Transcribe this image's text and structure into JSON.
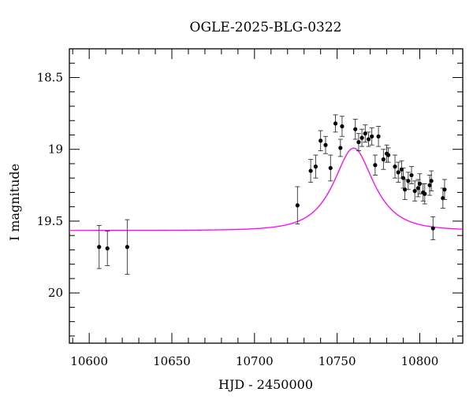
{
  "chart_data": {
    "type": "scatter",
    "title": "OGLE-2025-BLG-0322",
    "xlabel": "HJD - 2450000",
    "ylabel": "I magnitude",
    "xlim": [
      10588,
      10826
    ],
    "ylim": [
      20.35,
      18.3
    ],
    "y_inverted": true,
    "x_ticks": [
      10600,
      10650,
      10700,
      10750,
      10800
    ],
    "y_ticks": [
      18.5,
      19,
      19.5,
      20
    ],
    "grid": false,
    "colors": {
      "points": "#000000",
      "model": "#ff00ff",
      "frame": "#000000"
    },
    "series": [
      {
        "type": "errorbar",
        "points": [
          {
            "x": 10606,
            "y": 19.68,
            "err": 0.15
          },
          {
            "x": 10611,
            "y": 19.69,
            "err": 0.12
          },
          {
            "x": 10623,
            "y": 19.68,
            "err": 0.19
          },
          {
            "x": 10726,
            "y": 19.39,
            "err": 0.13
          },
          {
            "x": 10734,
            "y": 19.15,
            "err": 0.08
          },
          {
            "x": 10737,
            "y": 19.12,
            "err": 0.08
          },
          {
            "x": 10740,
            "y": 18.94,
            "err": 0.07
          },
          {
            "x": 10743,
            "y": 18.97,
            "err": 0.06
          },
          {
            "x": 10746,
            "y": 19.13,
            "err": 0.09
          },
          {
            "x": 10749,
            "y": 18.82,
            "err": 0.06
          },
          {
            "x": 10752,
            "y": 18.99,
            "err": 0.06
          },
          {
            "x": 10753,
            "y": 18.84,
            "err": 0.07
          },
          {
            "x": 10761,
            "y": 18.86,
            "err": 0.07
          },
          {
            "x": 10763,
            "y": 18.95,
            "err": 0.06
          },
          {
            "x": 10765,
            "y": 18.92,
            "err": 0.06
          },
          {
            "x": 10767,
            "y": 18.89,
            "err": 0.06
          },
          {
            "x": 10769,
            "y": 18.93,
            "err": 0.05
          },
          {
            "x": 10771,
            "y": 18.91,
            "err": 0.06
          },
          {
            "x": 10773,
            "y": 19.11,
            "err": 0.07
          },
          {
            "x": 10775,
            "y": 18.91,
            "err": 0.07
          },
          {
            "x": 10778,
            "y": 19.07,
            "err": 0.07
          },
          {
            "x": 10780,
            "y": 19.03,
            "err": 0.06
          },
          {
            "x": 10781,
            "y": 19.04,
            "err": 0.05
          },
          {
            "x": 10785,
            "y": 19.12,
            "err": 0.08
          },
          {
            "x": 10787,
            "y": 19.16,
            "err": 0.07
          },
          {
            "x": 10789,
            "y": 19.14,
            "err": 0.06
          },
          {
            "x": 10790,
            "y": 19.2,
            "err": 0.07
          },
          {
            "x": 10791,
            "y": 19.28,
            "err": 0.07
          },
          {
            "x": 10793,
            "y": 19.22,
            "err": 0.06
          },
          {
            "x": 10795,
            "y": 19.18,
            "err": 0.06
          },
          {
            "x": 10797,
            "y": 19.29,
            "err": 0.07
          },
          {
            "x": 10799,
            "y": 19.27,
            "err": 0.06
          },
          {
            "x": 10800,
            "y": 19.24,
            "err": 0.07
          },
          {
            "x": 10802,
            "y": 19.3,
            "err": 0.06
          },
          {
            "x": 10803,
            "y": 19.31,
            "err": 0.07
          },
          {
            "x": 10806,
            "y": 19.25,
            "err": 0.07
          },
          {
            "x": 10807,
            "y": 19.22,
            "err": 0.07
          },
          {
            "x": 10808,
            "y": 19.55,
            "err": 0.08
          },
          {
            "x": 10814,
            "y": 19.34,
            "err": 0.07
          },
          {
            "x": 10815,
            "y": 19.28,
            "err": 0.07
          }
        ]
      },
      {
        "type": "model_curve",
        "t0": 10760,
        "tE": 19,
        "u0": 0.62,
        "I_source": 19.765,
        "I_blend": 21.5
      }
    ]
  }
}
